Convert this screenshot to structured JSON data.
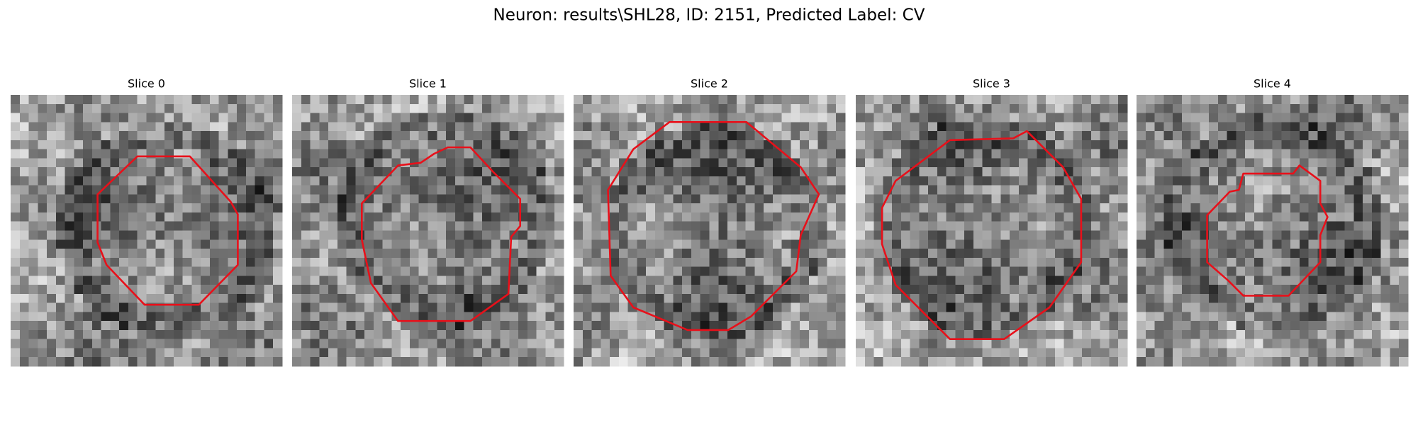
{
  "title": "Neuron: results\\SHL28, ID: 2151, Predicted Label: CV",
  "panels": [
    {
      "title": "Slice 0"
    },
    {
      "title": "Slice 1"
    },
    {
      "title": "Slice 2"
    },
    {
      "title": "Slice 3"
    },
    {
      "title": "Slice 4"
    }
  ]
}
